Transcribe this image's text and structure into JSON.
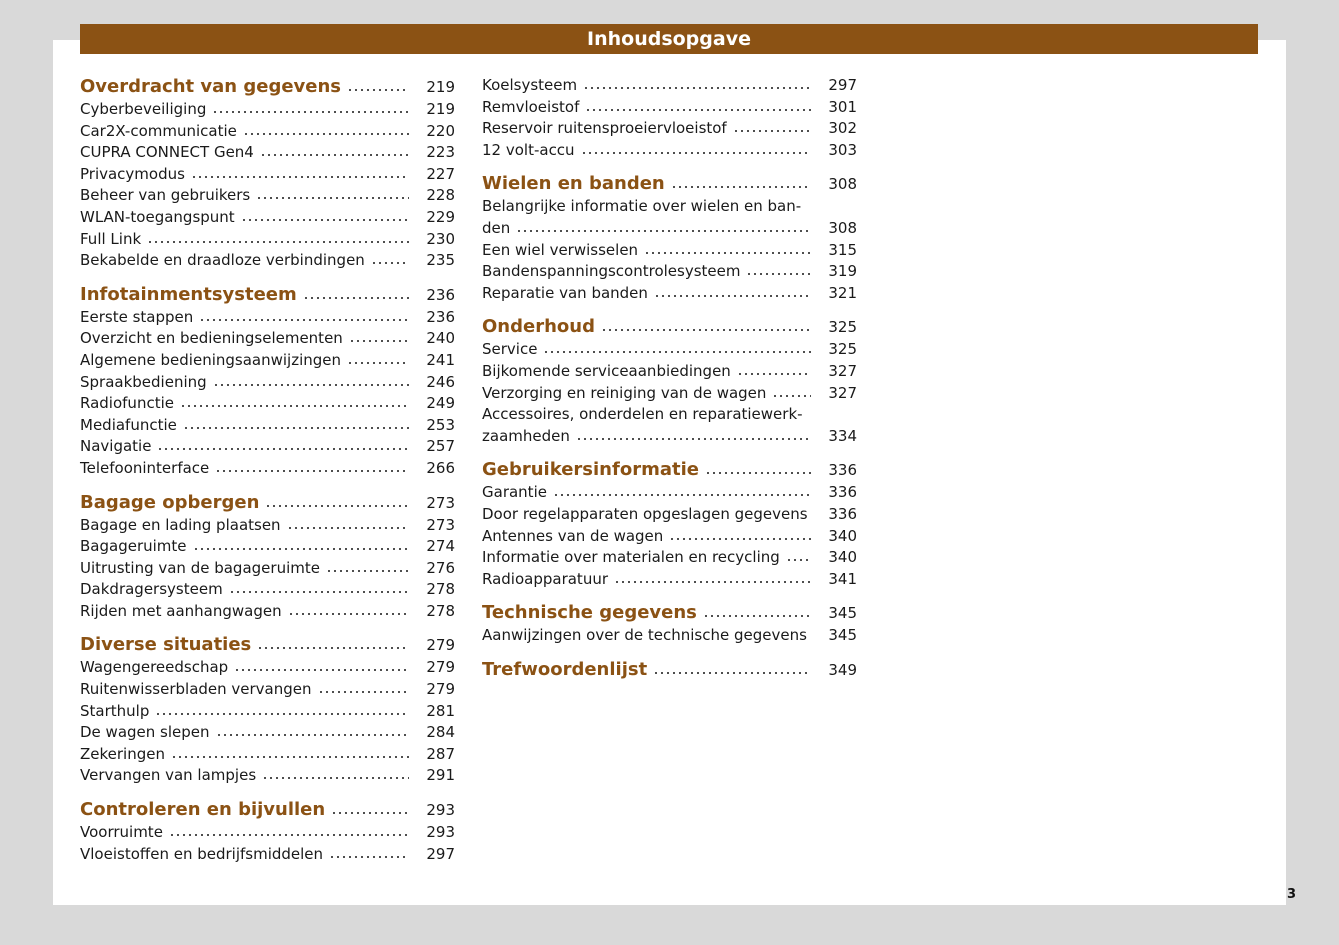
{
  "header": {
    "title": "Inhoudsopgave"
  },
  "page_number": 3,
  "columns": [
    {
      "sections": [
        {
          "heading": {
            "title": "Overdracht van gegevens",
            "page": 219
          },
          "entries": [
            {
              "title": "Cyberbeveiliging",
              "page": 219
            },
            {
              "title": "Car2X-communicatie",
              "page": 220
            },
            {
              "title": "CUPRA CONNECT Gen4",
              "page": 223
            },
            {
              "title": "Privacymodus",
              "page": 227
            },
            {
              "title": "Beheer van gebruikers",
              "page": 228
            },
            {
              "title": "WLAN-toegangspunt",
              "page": 229
            },
            {
              "title": "Full Link",
              "page": 230
            },
            {
              "title": "Bekabelde en draadloze verbindingen",
              "page": 235
            }
          ]
        },
        {
          "heading": {
            "title": "Infotainmentsysteem",
            "page": 236
          },
          "entries": [
            {
              "title": "Eerste stappen",
              "page": 236
            },
            {
              "title": "Overzicht en bedieningselementen",
              "page": 240
            },
            {
              "title": "Algemene bedieningsaanwijzingen",
              "page": 241
            },
            {
              "title": "Spraakbediening",
              "page": 246
            },
            {
              "title": "Radiofunctie",
              "page": 249
            },
            {
              "title": "Mediafunctie",
              "page": 253
            },
            {
              "title": "Navigatie",
              "page": 257
            },
            {
              "title": "Telefooninterface",
              "page": 266
            }
          ]
        },
        {
          "heading": {
            "title": "Bagage opbergen",
            "page": 273
          },
          "entries": [
            {
              "title": "Bagage en lading plaatsen",
              "page": 273
            },
            {
              "title": "Bagageruimte",
              "page": 274
            },
            {
              "title": "Uitrusting van de bagageruimte",
              "page": 276
            },
            {
              "title": "Dakdragersysteem",
              "page": 278
            },
            {
              "title": "Rijden met aanhangwagen",
              "page": 278
            }
          ]
        },
        {
          "heading": {
            "title": "Diverse situaties",
            "page": 279
          },
          "entries": [
            {
              "title": "Wagengereedschap",
              "page": 279
            },
            {
              "title": "Ruitenwisserbladen vervangen",
              "page": 279
            },
            {
              "title": "Starthulp",
              "page": 281
            },
            {
              "title": "De wagen slepen",
              "page": 284
            },
            {
              "title": "Zekeringen",
              "page": 287
            },
            {
              "title": "Vervangen van lampjes",
              "page": 291
            }
          ]
        },
        {
          "heading": {
            "title": "Controleren en bijvullen",
            "page": 293
          },
          "entries": [
            {
              "title": "Voorruimte",
              "page": 293
            },
            {
              "title": "Vloeistoffen en bedrijfsmiddelen",
              "page": 297
            }
          ]
        }
      ]
    },
    {
      "sections": [
        {
          "entries": [
            {
              "title": "Koelsysteem",
              "page": 297
            },
            {
              "title": "Remvloeistof",
              "page": 301
            },
            {
              "title": "Reservoir ruitensproeiervloeistof",
              "page": 302
            },
            {
              "title": "12 volt-accu",
              "page": 303
            }
          ]
        },
        {
          "heading": {
            "title": "Wielen en banden",
            "page": 308
          },
          "entries": [
            {
              "title": "Belangrijke informatie over wielen en ban-",
              "title_end": "den",
              "page": 308
            },
            {
              "title": "Een wiel verwisselen",
              "page": 315
            },
            {
              "title": "Bandenspanningscontrolesysteem",
              "page": 319
            },
            {
              "title": "Reparatie van banden",
              "page": 321
            }
          ]
        },
        {
          "heading": {
            "title": "Onderhoud",
            "page": 325
          },
          "entries": [
            {
              "title": "Service",
              "page": 325
            },
            {
              "title": "Bijkomende serviceaanbiedingen",
              "page": 327
            },
            {
              "title": "Verzorging en reiniging van de wagen",
              "page": 327
            },
            {
              "title": "Accessoires, onderdelen en reparatiewerk-",
              "title_end": "zaamheden",
              "page": 334
            }
          ]
        },
        {
          "heading": {
            "title": "Gebruikersinformatie",
            "page": 336
          },
          "entries": [
            {
              "title": "Garantie",
              "page": 336
            },
            {
              "title": "Door regelapparaten opgeslagen gegevens",
              "page": 336
            },
            {
              "title": "Antennes van de wagen",
              "page": 340
            },
            {
              "title": "Informatie over materialen en recycling",
              "page": 340
            },
            {
              "title": "Radioapparatuur",
              "page": 341
            }
          ]
        },
        {
          "heading": {
            "title": "Technische gegevens",
            "page": 345
          },
          "entries": [
            {
              "title": "Aanwijzingen over de technische gegevens",
              "page": 345
            }
          ]
        },
        {
          "heading": {
            "title": "Trefwoordenlijst",
            "page": 349
          },
          "entries": []
        }
      ]
    }
  ]
}
